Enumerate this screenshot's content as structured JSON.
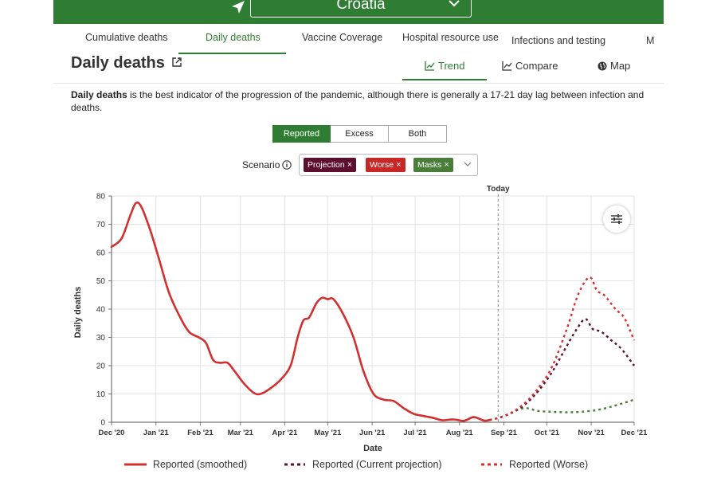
{
  "header": {
    "country": "Croatia",
    "colors": {
      "brand": "#2e7d32"
    }
  },
  "tabs": [
    {
      "label": "Cumulative deaths"
    },
    {
      "label": "Daily deaths"
    },
    {
      "label": "Vaccine Coverage"
    },
    {
      "label": "Hospital resource use"
    },
    {
      "label": "Infections and testing"
    },
    {
      "label": "M"
    }
  ],
  "page": {
    "title": "Daily deaths",
    "view_tabs": [
      {
        "label": "Trend",
        "icon": "line-chart-icon"
      },
      {
        "label": "Compare",
        "icon": "compare-chart-icon"
      },
      {
        "label": "Map",
        "icon": "globe-icon"
      }
    ],
    "desc_bold": "Daily deaths",
    "desc_rest": " is the best indicator of the progression of the pandemic, although there is generally a 17-21 day lag between infection and deaths."
  },
  "controls": {
    "modes": [
      "Reported",
      "Excess",
      "Both"
    ],
    "scenario_label": "Scenario",
    "scenarios": [
      {
        "label": "Projection",
        "color": "#5c0f2e"
      },
      {
        "label": "Worse",
        "color": "#c62828"
      },
      {
        "label": "Masks",
        "color": "#4a7c3a"
      }
    ]
  },
  "chart_data": {
    "type": "line",
    "xlabel": "Date",
    "ylabel": "Daily deaths",
    "ylim": [
      0,
      80
    ],
    "yticks": [
      0,
      10,
      20,
      30,
      40,
      50,
      60,
      70,
      80
    ],
    "xticks": [
      "Dec '20",
      "Jan '21",
      "Feb '21",
      "Mar '21",
      "Apr '21",
      "May '21",
      "Jun '21",
      "Jul '21",
      "Aug '21",
      "Sep '21",
      "Oct '21",
      "Nov '21",
      "Dec '21"
    ],
    "xlim": [
      "2020-12-01",
      "2021-12-01"
    ],
    "today": {
      "label": "Today",
      "date": "2021-08-28"
    },
    "grid": true,
    "legend_position": "bottom",
    "series": [
      {
        "name": "Reported (smoothed)",
        "color": "#d32f2f",
        "style": "solid",
        "points": [
          [
            "2020-12-01",
            62
          ],
          [
            "2020-12-08",
            65
          ],
          [
            "2020-12-14",
            73
          ],
          [
            "2020-12-18",
            77.5
          ],
          [
            "2020-12-22",
            76
          ],
          [
            "2020-12-28",
            68
          ],
          [
            "2021-01-03",
            58
          ],
          [
            "2021-01-10",
            46
          ],
          [
            "2021-01-17",
            38
          ],
          [
            "2021-01-24",
            32
          ],
          [
            "2021-01-31",
            30
          ],
          [
            "2021-02-05",
            28
          ],
          [
            "2021-02-10",
            22
          ],
          [
            "2021-02-15",
            21
          ],
          [
            "2021-02-20",
            21
          ],
          [
            "2021-02-25",
            18
          ],
          [
            "2021-03-03",
            14
          ],
          [
            "2021-03-10",
            10.5
          ],
          [
            "2021-03-15",
            10
          ],
          [
            "2021-03-22",
            12
          ],
          [
            "2021-03-29",
            15
          ],
          [
            "2021-04-05",
            20
          ],
          [
            "2021-04-10",
            30
          ],
          [
            "2021-04-14",
            36
          ],
          [
            "2021-04-18",
            37
          ],
          [
            "2021-04-23",
            42
          ],
          [
            "2021-04-27",
            44
          ],
          [
            "2021-05-01",
            43.5
          ],
          [
            "2021-05-05",
            43.5
          ],
          [
            "2021-05-12",
            38
          ],
          [
            "2021-05-19",
            30
          ],
          [
            "2021-05-26",
            18
          ],
          [
            "2021-06-02",
            10
          ],
          [
            "2021-06-09",
            8
          ],
          [
            "2021-06-16",
            7.5
          ],
          [
            "2021-06-23",
            5
          ],
          [
            "2021-06-30",
            3
          ],
          [
            "2021-07-07",
            2.2
          ],
          [
            "2021-07-14",
            1.5
          ],
          [
            "2021-07-20",
            0.7
          ],
          [
            "2021-07-28",
            1
          ],
          [
            "2021-08-04",
            0.5
          ],
          [
            "2021-08-11",
            1.8
          ],
          [
            "2021-08-18",
            0.6
          ],
          [
            "2021-08-22",
            0.8
          ]
        ]
      },
      {
        "name": "Reported (Current projection)",
        "color": "#5c0f2e",
        "style": "dashed",
        "points": [
          [
            "2021-08-22",
            0.8
          ],
          [
            "2021-08-28",
            1.5
          ],
          [
            "2021-09-05",
            3
          ],
          [
            "2021-09-15",
            6
          ],
          [
            "2021-09-25",
            11
          ],
          [
            "2021-10-05",
            18
          ],
          [
            "2021-10-15",
            27
          ],
          [
            "2021-10-22",
            33
          ],
          [
            "2021-10-28",
            36.5
          ],
          [
            "2021-11-02",
            33
          ],
          [
            "2021-11-08",
            32
          ],
          [
            "2021-11-15",
            29
          ],
          [
            "2021-11-22",
            26
          ],
          [
            "2021-12-01",
            20
          ]
        ]
      },
      {
        "name": "Reported (Worse)",
        "color": "#d32f2f",
        "style": "dashed",
        "points": [
          [
            "2021-08-22",
            0.8
          ],
          [
            "2021-08-28",
            1.5
          ],
          [
            "2021-09-05",
            3
          ],
          [
            "2021-09-15",
            6.5
          ],
          [
            "2021-09-25",
            12
          ],
          [
            "2021-10-05",
            20
          ],
          [
            "2021-10-15",
            33
          ],
          [
            "2021-10-22",
            44
          ],
          [
            "2021-10-28",
            50
          ],
          [
            "2021-11-01",
            51
          ],
          [
            "2021-11-05",
            46.5
          ],
          [
            "2021-11-10",
            45
          ],
          [
            "2021-11-18",
            40
          ],
          [
            "2021-11-24",
            37
          ],
          [
            "2021-12-01",
            29
          ]
        ]
      },
      {
        "name": "Masks",
        "color": "#4a7c3a",
        "style": "dashed",
        "points": [
          [
            "2021-08-22",
            0.8
          ],
          [
            "2021-08-28",
            1.5
          ],
          [
            "2021-09-05",
            3
          ],
          [
            "2021-09-15",
            5
          ],
          [
            "2021-09-25",
            4
          ],
          [
            "2021-10-05",
            3.7
          ],
          [
            "2021-10-15",
            3.5
          ],
          [
            "2021-10-25",
            3.7
          ],
          [
            "2021-11-05",
            4.3
          ],
          [
            "2021-11-15",
            5.5
          ],
          [
            "2021-11-25",
            7
          ],
          [
            "2021-12-01",
            8
          ]
        ]
      }
    ]
  },
  "legend": [
    {
      "label": "Reported (smoothed)",
      "color": "#d32f2f",
      "style": "solid"
    },
    {
      "label": "Reported (Current projection)",
      "color": "#5c0f2e",
      "style": "dotted"
    },
    {
      "label": "Reported (Worse)",
      "color": "#d32f2f",
      "style": "dotted"
    }
  ]
}
